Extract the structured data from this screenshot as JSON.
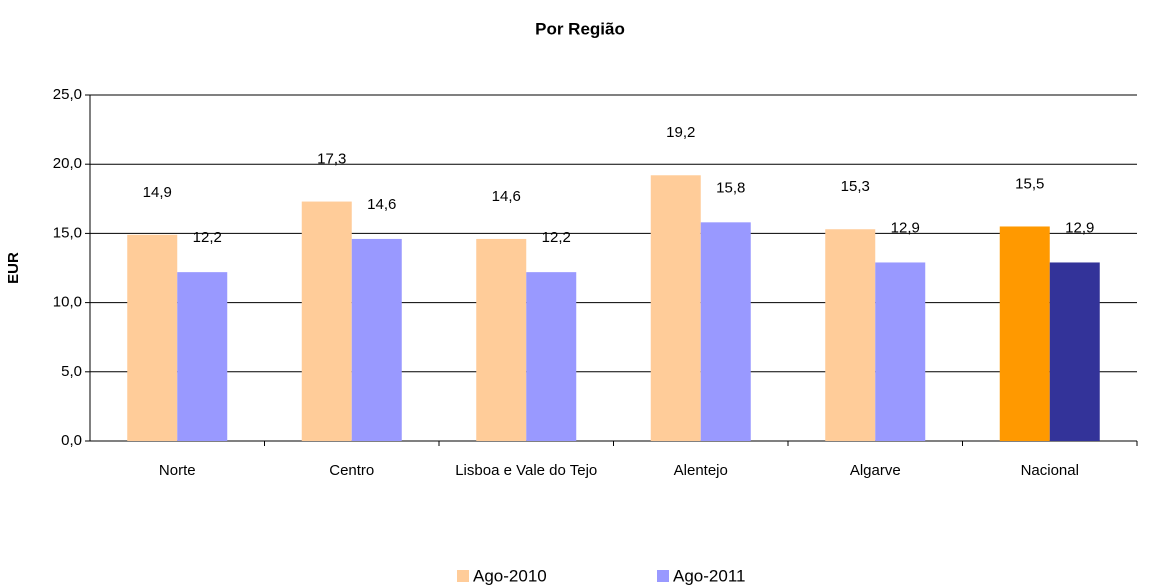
{
  "chart_data": {
    "type": "bar",
    "title": "Por Região",
    "y_label": "EUR",
    "categories": [
      "Norte",
      "Centro",
      "Lisboa e Vale do Tejo",
      "Alentejo",
      "Algarve",
      "Nacional"
    ],
    "series": [
      {
        "name": "Ago-2010",
        "color": "#ffcc99",
        "colors": [
          "#ffcc99",
          "#ffcc99",
          "#ffcc99",
          "#ffcc99",
          "#ffcc99",
          "#ff9900"
        ],
        "values": [
          14.9,
          17.3,
          14.6,
          19.2,
          15.3,
          15.5
        ],
        "value_labels": [
          "14,9",
          "17,3",
          "14,6",
          "19,2",
          "15,3",
          "15,5"
        ]
      },
      {
        "name": "Ago-2011",
        "color": "#9999ff",
        "colors": [
          "#9999ff",
          "#9999ff",
          "#9999ff",
          "#9999ff",
          "#9999ff",
          "#333399"
        ],
        "values": [
          12.2,
          14.6,
          12.2,
          15.8,
          12.9,
          12.9
        ],
        "value_labels": [
          "12,2",
          "14,6",
          "12,2",
          "15,8",
          "12,9",
          "12,9"
        ]
      }
    ],
    "ylim": [
      0,
      25
    ],
    "yticks": [
      {
        "value": 0,
        "label": "0,0"
      },
      {
        "value": 5,
        "label": "5,0"
      },
      {
        "value": 10,
        "label": "10,0"
      },
      {
        "value": 15,
        "label": "15,0"
      },
      {
        "value": 20,
        "label": "20,0"
      },
      {
        "value": 25,
        "label": "25,0"
      }
    ],
    "grid": true
  }
}
